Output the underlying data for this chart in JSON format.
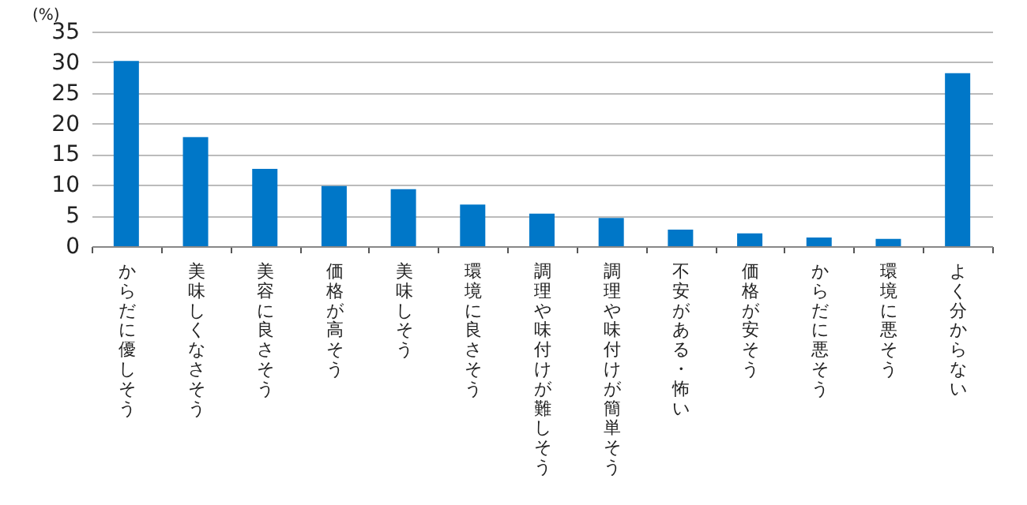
{
  "chart_data": {
    "type": "bar",
    "ylabel": "(%)",
    "categories": [
      "からだに優しそう",
      "美味しくなさそう",
      "美容に良さそう",
      "価格が高そう",
      "美味しそう",
      "環境に良さそう",
      "調理や味付けが難しそう",
      "調理や味付けが簡単そう",
      "不安がある・怖い",
      "価格が安そう",
      "からだに悪そう",
      "環境に悪そう",
      "よく分からない"
    ],
    "values": [
      30.2,
      17.8,
      12.6,
      9.8,
      9.3,
      6.8,
      5.3,
      4.6,
      2.7,
      2.1,
      1.4,
      1.2,
      28.2
    ],
    "color": "#0077c8",
    "ylim": [
      0,
      35
    ],
    "yticks": [
      0,
      5,
      10,
      15,
      20,
      25,
      30,
      35
    ],
    "grid": "y"
  }
}
